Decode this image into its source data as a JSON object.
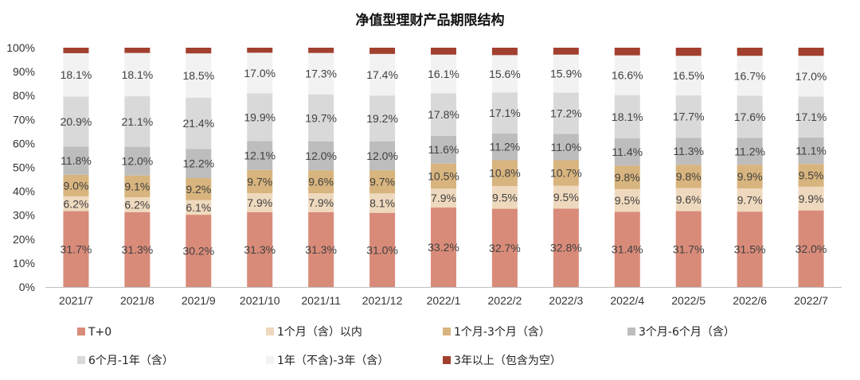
{
  "chart_data": {
    "type": "bar",
    "stacked": true,
    "title": "净值型理财产品期限结构",
    "categories": [
      "2021/7",
      "2021/8",
      "2021/9",
      "2021/10",
      "2021/11",
      "2021/12",
      "2022/1",
      "2022/2",
      "2022/3",
      "2022/4",
      "2022/5",
      "2022/6",
      "2022/7"
    ],
    "y_ticks": [
      "0%",
      "10%",
      "20%",
      "30%",
      "40%",
      "50%",
      "60%",
      "70%",
      "80%",
      "90%",
      "100%"
    ],
    "ylim": [
      0,
      100
    ],
    "grid": false,
    "legend_position": "bottom",
    "series": [
      {
        "name": "T+0",
        "color": "#D98B79",
        "values": [
          31.7,
          31.3,
          30.2,
          31.3,
          31.3,
          31.0,
          33.2,
          32.7,
          32.8,
          31.4,
          31.7,
          31.5,
          32.0
        ],
        "labels": [
          "31.7%",
          "31.3%",
          "30.2%",
          "31.3%",
          "31.3%",
          "31.0%",
          "33.2%",
          "32.7%",
          "32.8%",
          "31.4%",
          "31.7%",
          "31.5%",
          "32.0%"
        ]
      },
      {
        "name": "1个月（含）以内",
        "color": "#EFD9BE",
        "values": [
          6.2,
          6.2,
          6.1,
          7.9,
          7.9,
          8.1,
          7.9,
          9.5,
          9.5,
          9.5,
          9.6,
          9.7,
          9.9
        ],
        "labels": [
          "6.2%",
          "6.2%",
          "6.1%",
          "7.9%",
          "7.9%",
          "8.1%",
          "7.9%",
          "9.5%",
          "9.5%",
          "9.5%",
          "9.6%",
          "9.7%",
          "9.9%"
        ]
      },
      {
        "name": "1个月-3个月（含）",
        "color": "#D8B47E",
        "values": [
          9.0,
          9.1,
          9.2,
          9.7,
          9.6,
          9.7,
          10.5,
          10.8,
          10.7,
          9.8,
          9.8,
          9.9,
          9.5
        ],
        "labels": [
          "9.0%",
          "9.1%",
          "9.2%",
          "9.7%",
          "9.6%",
          "9.7%",
          "10.5%",
          "10.8%",
          "10.7%",
          "9.8%",
          "9.8%",
          "9.9%",
          "9.5%"
        ]
      },
      {
        "name": "3个月-6个月（含）",
        "color": "#BDBDBD",
        "values": [
          11.8,
          12.0,
          12.2,
          12.1,
          12.0,
          12.0,
          11.6,
          11.2,
          11.0,
          11.4,
          11.3,
          11.2,
          11.1
        ],
        "labels": [
          "11.8%",
          "12.0%",
          "12.2%",
          "12.1%",
          "12.0%",
          "12.0%",
          "11.6%",
          "11.2%",
          "11.0%",
          "11.4%",
          "11.3%",
          "11.2%",
          "11.1%"
        ]
      },
      {
        "name": "6个月-1年（含）",
        "color": "#D9D9D9",
        "values": [
          20.9,
          21.1,
          21.4,
          19.9,
          19.7,
          19.2,
          17.8,
          17.1,
          17.2,
          18.1,
          17.7,
          17.6,
          17.1
        ],
        "labels": [
          "20.9%",
          "21.1%",
          "21.4%",
          "19.9%",
          "19.7%",
          "19.2%",
          "17.8%",
          "17.1%",
          "17.2%",
          "18.1%",
          "17.7%",
          "17.6%",
          "17.1%"
        ]
      },
      {
        "name": "1年（不含)-3年（含）",
        "color": "#F2F2F2",
        "values": [
          18.1,
          18.1,
          18.5,
          17.0,
          17.3,
          17.4,
          16.1,
          15.6,
          15.9,
          16.6,
          16.5,
          16.7,
          17.0
        ],
        "labels": [
          "18.1%",
          "18.1%",
          "18.5%",
          "17.0%",
          "17.3%",
          "17.4%",
          "16.1%",
          "15.6%",
          "15.9%",
          "16.6%",
          "16.5%",
          "16.7%",
          "17.0%"
        ]
      },
      {
        "name": "3年以上（包含为空）",
        "color": "#A2402F",
        "values": [
          2.3,
          2.2,
          2.4,
          2.1,
          2.2,
          2.6,
          2.9,
          3.1,
          2.9,
          3.2,
          3.4,
          3.4,
          3.4
        ],
        "labels": []
      }
    ]
  }
}
